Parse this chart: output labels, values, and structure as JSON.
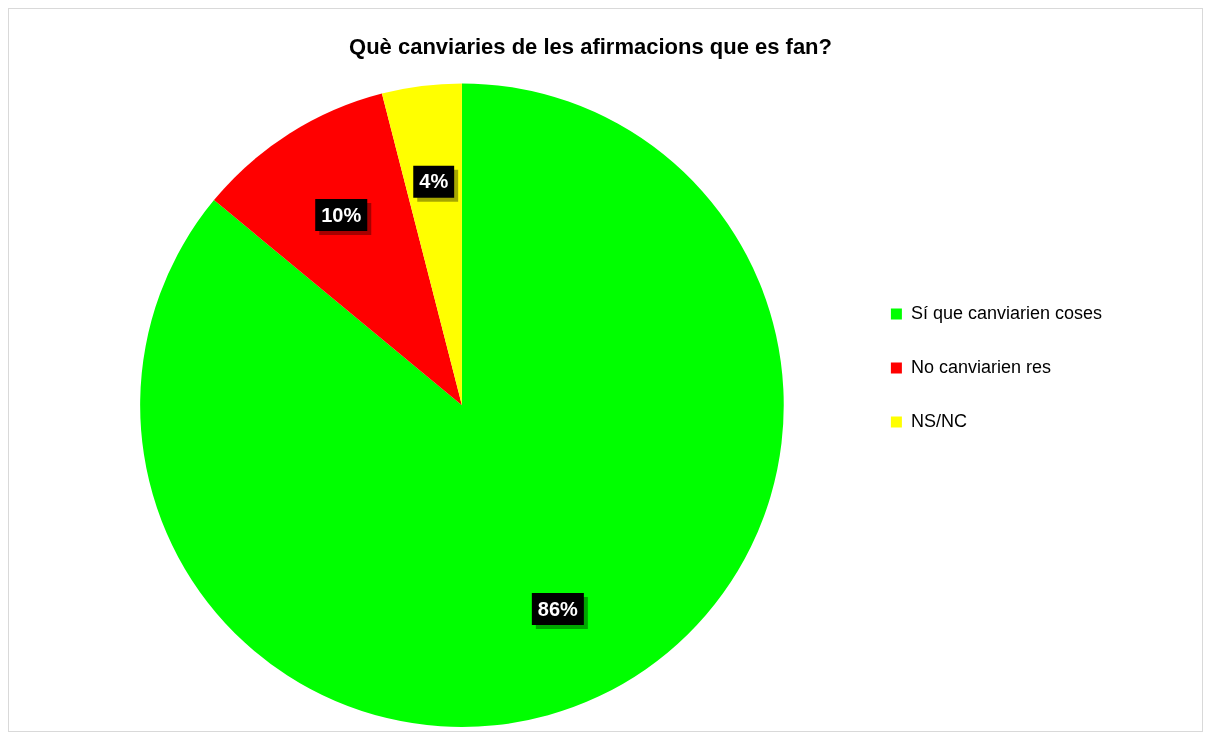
{
  "chart_data": {
    "type": "pie",
    "title": "Què canviaries de les afirmacions que es fan?",
    "categories": [
      "Sí que canviarien coses",
      "No canviarien res",
      "NS/NC"
    ],
    "values": [
      86,
      10,
      4
    ],
    "colors": [
      "#00ff00",
      "#ff0000",
      "#ffff00"
    ],
    "value_labels": [
      "86%",
      "10%",
      "4%"
    ],
    "legend": "right"
  }
}
